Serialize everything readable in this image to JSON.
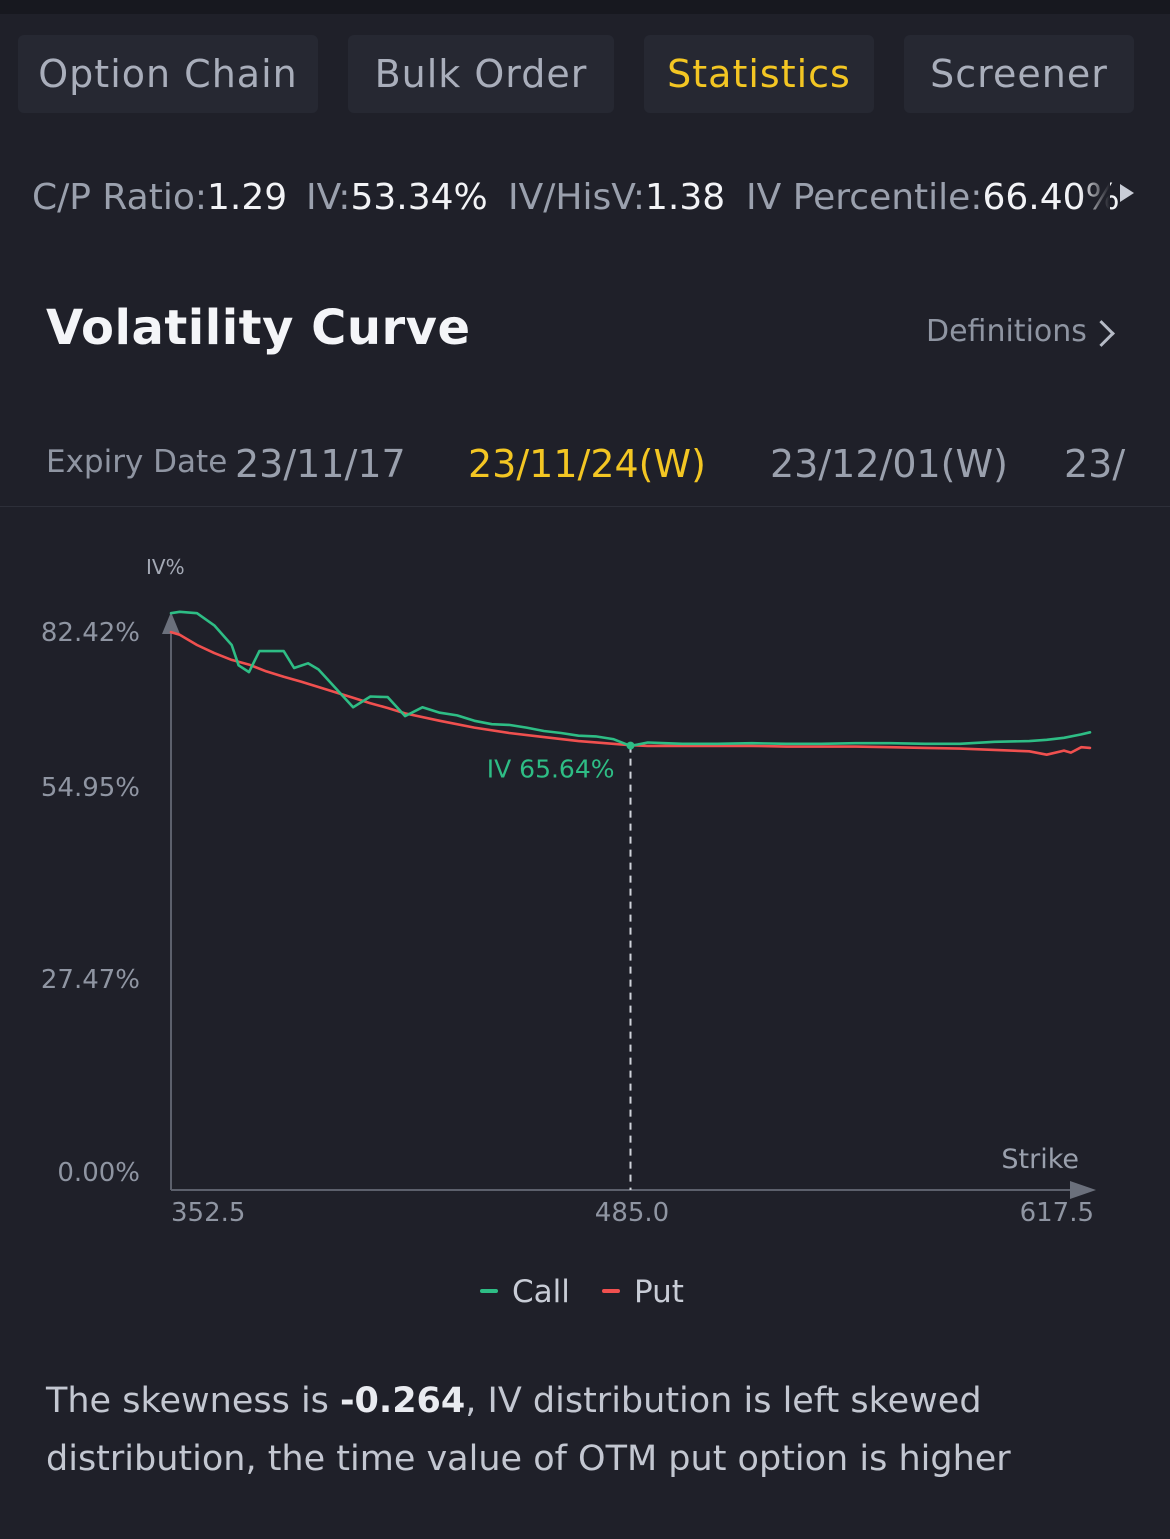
{
  "tabs": [
    {
      "label": "Option Chain",
      "active": false
    },
    {
      "label": "Bulk Order",
      "active": false
    },
    {
      "label": "Statistics",
      "active": true
    },
    {
      "label": "Screener",
      "active": false
    }
  ],
  "metrics": [
    {
      "label": "C/P Ratio:",
      "value": "1.29"
    },
    {
      "label": "IV:",
      "value": "53.34%"
    },
    {
      "label": "IV/HisV:",
      "value": "1.38"
    },
    {
      "label": "IV Percentile:",
      "value": "66.40%"
    }
  ],
  "section": {
    "title": "Volatility Curve",
    "definitions_label": "Definitions"
  },
  "expiry": {
    "label": "Expiry Date",
    "dates": [
      {
        "label": "23/11/17",
        "active": false
      },
      {
        "label": "23/11/24(W)",
        "active": true
      },
      {
        "label": "23/12/01(W)",
        "active": false
      },
      {
        "label": "23/",
        "active": false
      }
    ]
  },
  "chart_data": {
    "type": "line",
    "ylabel": "IV%",
    "xlabel": "Strike",
    "y_ticks": [
      "82.42%",
      "54.95%",
      "27.47%",
      "0.00%"
    ],
    "x_ticks": [
      "352.5",
      "485.0",
      "617.5"
    ],
    "ylim": [
      0,
      82.42
    ],
    "xlim": [
      352.5,
      617.5
    ],
    "grid": false,
    "legend_position": "bottom-center",
    "series": [
      {
        "name": "Call",
        "color": "#2ebd85",
        "x": [
          352.5,
          355,
          360,
          365,
          370,
          372,
          375,
          378,
          380,
          385,
          388,
          392,
          395,
          400,
          405,
          410,
          415,
          420,
          425,
          430,
          435,
          440,
          445,
          450,
          455,
          460,
          465,
          470,
          475,
          480,
          485,
          490,
          495,
          500,
          510,
          520,
          530,
          540,
          550,
          560,
          570,
          580,
          590,
          600,
          605,
          610,
          615,
          617.5
        ],
        "y": [
          85.2,
          85.4,
          85.2,
          83.4,
          80.5,
          77.5,
          76.5,
          79.6,
          79.6,
          79.6,
          77.1,
          77.8,
          76.9,
          74.1,
          71.3,
          72.9,
          72.8,
          70.0,
          71.3,
          70.5,
          70.1,
          69.3,
          68.8,
          68.7,
          68.3,
          67.8,
          67.5,
          67.1,
          67.0,
          66.6,
          65.6,
          66.1,
          66.0,
          65.9,
          65.9,
          66.0,
          65.9,
          65.9,
          66.0,
          66.0,
          65.9,
          65.9,
          66.2,
          66.3,
          66.5,
          66.8,
          67.3,
          67.6
        ]
      },
      {
        "name": "Put",
        "color": "#f0504f",
        "x": [
          352.5,
          355,
          360,
          365,
          370,
          375,
          380,
          385,
          390,
          395,
          400,
          405,
          410,
          415,
          420,
          430,
          440,
          450,
          460,
          470,
          480,
          485,
          490,
          500,
          510,
          520,
          530,
          540,
          550,
          560,
          570,
          580,
          590,
          600,
          605,
          610,
          612,
          615,
          617.5
        ],
        "y": [
          82.4,
          82.0,
          80.5,
          79.3,
          78.3,
          77.6,
          76.6,
          75.8,
          75.1,
          74.3,
          73.5,
          72.7,
          71.9,
          71.2,
          70.4,
          69.3,
          68.3,
          67.5,
          66.9,
          66.3,
          65.9,
          65.7,
          65.6,
          65.6,
          65.6,
          65.6,
          65.5,
          65.5,
          65.5,
          65.4,
          65.3,
          65.2,
          65.0,
          64.8,
          64.3,
          64.9,
          64.6,
          65.4,
          65.3
        ]
      }
    ],
    "crosshair": {
      "x": 485.0,
      "label": "IV 65.64%",
      "value": 65.64
    }
  },
  "summary": {
    "prefix": "The skewness is ",
    "value": "-0.264",
    "suffix": ", IV distribution is left  skewed distribution, the time value of OTM put option is higher"
  }
}
